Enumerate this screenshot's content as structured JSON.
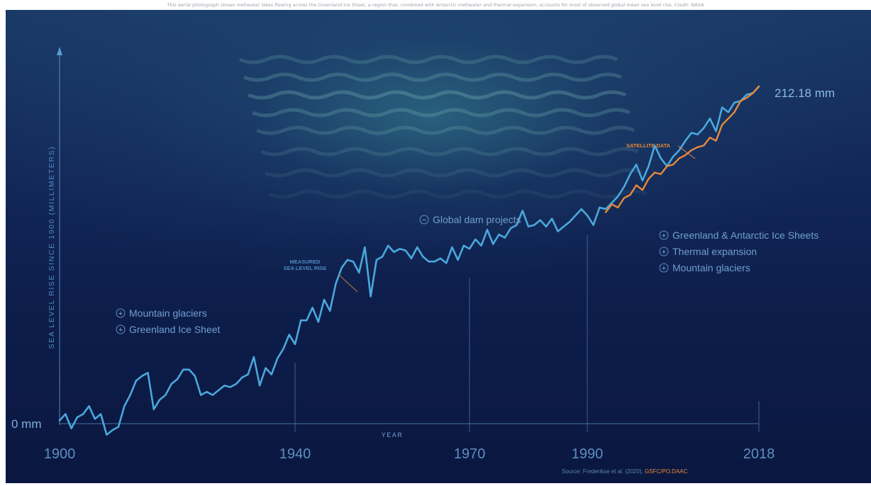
{
  "caption": "This aerial photograph shows meltwater lakes flowing across the Greenland Ice Sheet, a region that, combined with Antarctic meltwater and thermal expansion, accounts for most of observed global mean sea level rise. Credit: NASA",
  "colors": {
    "measured": "#4aa8dc",
    "satellite": "#e8893a",
    "axis": "#5a8fc0",
    "text": "#7fb0da",
    "source_accent": "#e8893a"
  },
  "chart_data": {
    "type": "line",
    "ylabel": "SEA LEVEL RISE SINCE 1900 (MILLIMETERS)",
    "xlabel": "YEAR",
    "x_ticks": [
      "1900",
      "1940",
      "1970",
      "1990",
      "2018"
    ],
    "xlim": [
      1900,
      2018
    ],
    "ylim": [
      -10,
      235
    ],
    "zero_label": "0 mm",
    "end_value_label": "212.18 mm",
    "series": [
      {
        "name": "MEASURED SEA LEVEL RISE",
        "x": [
          1900,
          1901,
          1902,
          1903,
          1904,
          1905,
          1906,
          1907,
          1908,
          1909,
          1910,
          1911,
          1912,
          1913,
          1914,
          1915,
          1916,
          1917,
          1918,
          1919,
          1920,
          1921,
          1922,
          1923,
          1924,
          1925,
          1926,
          1927,
          1928,
          1929,
          1930,
          1931,
          1932,
          1933,
          1934,
          1935,
          1936,
          1937,
          1938,
          1939,
          1940,
          1941,
          1942,
          1943,
          1944,
          1945,
          1946,
          1947,
          1948,
          1949,
          1950,
          1951,
          1952,
          1953,
          1954,
          1955,
          1956,
          1957,
          1958,
          1959,
          1960,
          1961,
          1962,
          1963,
          1964,
          1965,
          1966,
          1967,
          1968,
          1969,
          1970,
          1971,
          1972,
          1973,
          1974,
          1975,
          1976,
          1977,
          1978,
          1979,
          1980,
          1981,
          1982,
          1983,
          1984,
          1985,
          1986,
          1987,
          1988,
          1989,
          1990,
          1991,
          1992,
          1993,
          1994,
          1995,
          1996,
          1997,
          1998,
          1999,
          2000,
          2001,
          2002,
          2003,
          2004,
          2005,
          2006,
          2007,
          2008,
          2009,
          2010,
          2011,
          2012,
          2013,
          2014,
          2015,
          2016,
          2017,
          2018
        ],
        "values": [
          2,
          6,
          -3,
          4,
          6,
          11,
          3,
          6,
          -7,
          -4,
          -2,
          11,
          18,
          27,
          30,
          32,
          9,
          15,
          18,
          25,
          28,
          34,
          34,
          30,
          18,
          20,
          18,
          21,
          24,
          23,
          25,
          29,
          31,
          42,
          24,
          35,
          31,
          41,
          47,
          56,
          50,
          65,
          65,
          73,
          64,
          78,
          71,
          88,
          98,
          103,
          102,
          95,
          111,
          80,
          103,
          105,
          112,
          108,
          110,
          109,
          104,
          111,
          105,
          102,
          102,
          104,
          101,
          111,
          103,
          112,
          110,
          116,
          112,
          122,
          113,
          119,
          117,
          123,
          125,
          134,
          124,
          125,
          128,
          124,
          129,
          121,
          124,
          127,
          131,
          135,
          131,
          125,
          136,
          135,
          139,
          143,
          149,
          157,
          163,
          153,
          162,
          175,
          167,
          162,
          168,
          172,
          178,
          183,
          182,
          186,
          192,
          184,
          199,
          196,
          202,
          203,
          207,
          208,
          212.18
        ]
      },
      {
        "name": "SATELLITE DATA",
        "x": [
          1993,
          1994,
          1995,
          1996,
          1997,
          1998,
          1999,
          2000,
          2001,
          2002,
          2003,
          2004,
          2005,
          2006,
          2007,
          2008,
          2009,
          2010,
          2011,
          2012,
          2013,
          2014,
          2015,
          2016,
          2017,
          2018
        ],
        "values": [
          133,
          138,
          136,
          142,
          144,
          150,
          147,
          154,
          158,
          157,
          162,
          163,
          167,
          169,
          172,
          174,
          175,
          180,
          178,
          188,
          192,
          196,
          203,
          205,
          208,
          212.18
        ]
      }
    ],
    "annotations": [
      {
        "sign": "+",
        "text": "Mountain glaciers"
      },
      {
        "sign": "+",
        "text": "Greenland Ice Sheet"
      },
      {
        "sign": "−",
        "text": "Global dam projects"
      },
      {
        "sign": "+",
        "text": "Greenland & Antarctic Ice Sheets"
      },
      {
        "sign": "+",
        "text": "Thermal expansion"
      },
      {
        "sign": "+",
        "text": "Mountain glaciers"
      }
    ],
    "series_labels": {
      "measured_line1": "MEASURED",
      "measured_line2": "SEA LEVEL RISE",
      "satellite": "SATELLITE DATA"
    },
    "source": {
      "prefix": "Source: Frederikse et al. (2020), ",
      "accent": "GSFC/PO.DAAC"
    }
  }
}
